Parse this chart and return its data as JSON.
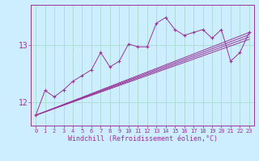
{
  "xlabel": "Windchill (Refroidissement éolien,°C)",
  "bg_color": "#cceeff",
  "grid_color": "#aaddcc",
  "line_color": "#993399",
  "xlim": [
    -0.5,
    23.5
  ],
  "ylim": [
    11.6,
    13.7
  ],
  "yticks": [
    12,
    13
  ],
  "xticks": [
    0,
    1,
    2,
    3,
    4,
    5,
    6,
    7,
    8,
    9,
    10,
    11,
    12,
    13,
    14,
    15,
    16,
    17,
    18,
    19,
    20,
    21,
    22,
    23
  ],
  "straight_lines": [
    {
      "x0": 0,
      "y0": 11.78,
      "x1": 23,
      "y1": 13.22
    },
    {
      "x0": 0,
      "y0": 11.78,
      "x1": 23,
      "y1": 13.18
    },
    {
      "x0": 0,
      "y0": 11.78,
      "x1": 23,
      "y1": 13.14
    },
    {
      "x0": 0,
      "y0": 11.78,
      "x1": 23,
      "y1": 13.1
    }
  ],
  "zigzag_x": [
    0,
    1,
    2,
    3,
    4,
    5,
    6,
    7,
    8,
    9,
    10,
    11,
    12,
    13,
    14,
    15,
    16,
    17,
    18,
    19,
    20,
    21,
    22,
    23
  ],
  "zigzag_y": [
    11.78,
    12.21,
    12.1,
    12.22,
    12.37,
    12.47,
    12.57,
    12.87,
    12.62,
    12.72,
    13.02,
    12.97,
    12.97,
    13.38,
    13.48,
    13.27,
    13.17,
    13.22,
    13.27,
    13.12,
    13.27,
    12.72,
    12.87,
    13.22
  ]
}
